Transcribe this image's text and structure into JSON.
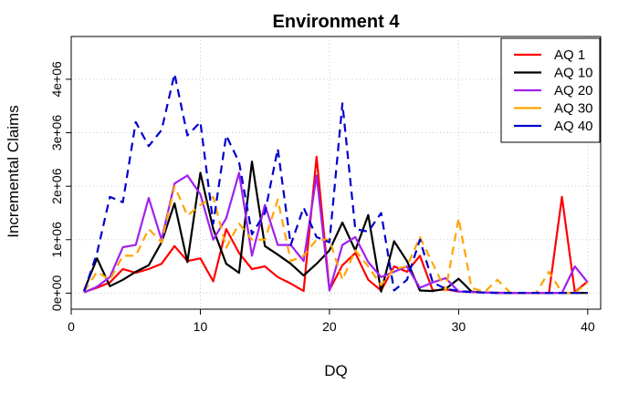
{
  "chart_data": {
    "type": "line",
    "title": "Environment 4",
    "xlabel": "DQ",
    "ylabel": "Incremental Claims",
    "xlim": [
      0,
      41
    ],
    "ylim": [
      -300000,
      4800000
    ],
    "x_ticks": [
      0,
      10,
      20,
      30,
      40
    ],
    "x_tick_labels": [
      "0",
      "10",
      "20",
      "30",
      "40"
    ],
    "y_ticks": [
      0,
      1000000,
      2000000,
      3000000,
      4000000
    ],
    "y_tick_labels": [
      "0e+00",
      "1e+06",
      "2e+06",
      "3e+06",
      "4e+06"
    ],
    "grid": true,
    "legend_position": "top-right",
    "x": [
      1,
      2,
      3,
      4,
      5,
      6,
      7,
      8,
      9,
      10,
      11,
      12,
      13,
      14,
      15,
      16,
      17,
      18,
      19,
      20,
      21,
      22,
      23,
      24,
      25,
      26,
      27,
      28,
      29,
      30,
      31,
      32,
      33,
      34,
      35,
      36,
      37,
      38,
      39,
      40
    ],
    "series": [
      {
        "name": "AQ 1",
        "color": "#FF0000",
        "dash": "solid",
        "values": [
          20000,
          100000,
          200000,
          450000,
          380000,
          450000,
          550000,
          880000,
          600000,
          650000,
          220000,
          1200000,
          750000,
          450000,
          500000,
          300000,
          180000,
          40000,
          2550000,
          60000,
          520000,
          750000,
          250000,
          50000,
          500000,
          400000,
          700000,
          50000,
          70000,
          30000,
          20000,
          10000,
          8000,
          5000,
          5000,
          5000,
          5000,
          1800000,
          20000,
          220000
        ]
      },
      {
        "name": "AQ 10",
        "color": "#000000",
        "dash": "solid",
        "values": [
          50000,
          650000,
          130000,
          250000,
          400000,
          520000,
          950000,
          1680000,
          580000,
          2250000,
          1200000,
          550000,
          380000,
          2460000,
          880000,
          720000,
          550000,
          330000,
          550000,
          800000,
          1320000,
          800000,
          1460000,
          30000,
          970000,
          600000,
          50000,
          40000,
          80000,
          270000,
          30000,
          10000,
          5000,
          5000,
          5000,
          5000,
          5000,
          5000,
          5000,
          5000
        ]
      },
      {
        "name": "AQ 20",
        "color": "#A020F0",
        "dash": "solid",
        "values": [
          10000,
          120000,
          300000,
          860000,
          900000,
          1780000,
          1000000,
          2050000,
          2200000,
          1850000,
          1000000,
          1400000,
          2250000,
          700000,
          1650000,
          900000,
          900000,
          600000,
          2200000,
          50000,
          900000,
          1050000,
          580000,
          300000,
          400000,
          500000,
          100000,
          200000,
          280000,
          30000,
          20000,
          10000,
          5000,
          5000,
          5000,
          5000,
          5000,
          5000,
          500000,
          200000
        ]
      },
      {
        "name": "AQ 30",
        "color": "#FFA500",
        "dash": "dashed",
        "values": [
          30000,
          400000,
          250000,
          700000,
          700000,
          1200000,
          950000,
          2000000,
          1450000,
          1650000,
          1800000,
          850000,
          1300000,
          1000000,
          1000000,
          1750000,
          600000,
          700000,
          1000000,
          1000000,
          250000,
          800000,
          500000,
          150000,
          450000,
          500000,
          1050000,
          550000,
          50000,
          1400000,
          100000,
          20000,
          250000,
          10000,
          5000,
          5000,
          400000,
          10000,
          5000,
          200000
        ]
      },
      {
        "name": "AQ 40",
        "color": "#0000CD",
        "dash": "dashed",
        "values": [
          30000,
          750000,
          1800000,
          1700000,
          3200000,
          2750000,
          3050000,
          4100000,
          2950000,
          3200000,
          1300000,
          2950000,
          2450000,
          1100000,
          1500000,
          2700000,
          900000,
          1600000,
          1050000,
          950000,
          3550000,
          1200000,
          1150000,
          1500000,
          50000,
          250000,
          1000000,
          200000,
          80000,
          40000,
          20000,
          10000,
          5000,
          5000,
          5000,
          5000,
          5000,
          5000,
          5000,
          5000
        ]
      }
    ]
  }
}
